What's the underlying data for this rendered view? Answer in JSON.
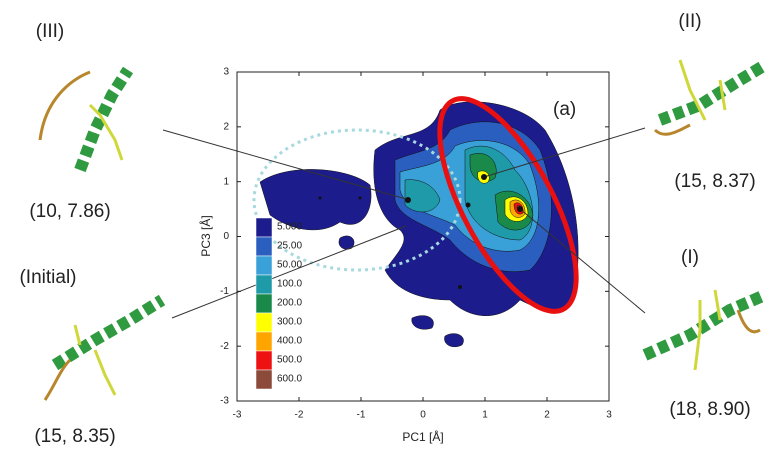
{
  "chart_data": {
    "type": "contour",
    "panel_label": "(a)",
    "xlabel": "PC1 [Å]",
    "ylabel": "PC3 [Å]",
    "xlim": [
      -3,
      3
    ],
    "ylim": [
      -3,
      3
    ],
    "xticks": [
      -3,
      -2,
      -1,
      0,
      1,
      2,
      3
    ],
    "yticks": [
      -3,
      -2,
      -1,
      0,
      1,
      2,
      3
    ],
    "legend": {
      "values": [
        5,
        25,
        50,
        100,
        200,
        300,
        400,
        500,
        600
      ],
      "value_labels": [
        "5.000",
        "25.00",
        "50.00",
        "100.0",
        "200.0",
        "300.0",
        "400.0",
        "500.0",
        "600.0"
      ],
      "colors": [
        "#1c1c8c",
        "#2a5fbf",
        "#3aa0d8",
        "#1f9aa8",
        "#1a8a4a",
        "#ffff00",
        "#ffa500",
        "#ee1111",
        "#8b4a3a"
      ]
    },
    "structures": [
      {
        "label": "(III)",
        "coords": "(10, 7.86)"
      },
      {
        "label": "(II)",
        "coords": "(15, 8.37)"
      },
      {
        "label": "(Initial)",
        "coords": "(15, 8.35)"
      },
      {
        "label": "(I)",
        "coords": "(18, 8.90)"
      }
    ]
  }
}
